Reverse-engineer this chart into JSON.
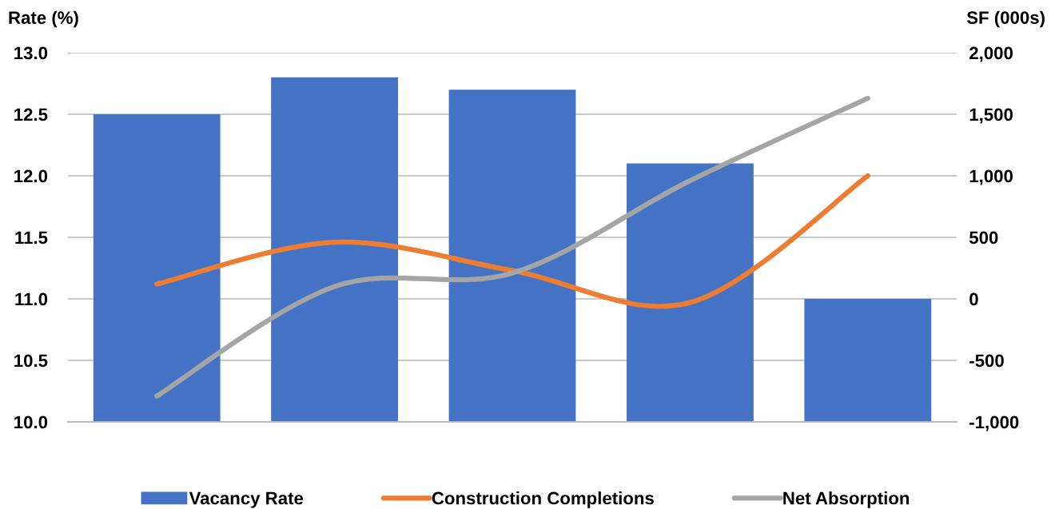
{
  "chart_data": {
    "type": "bar",
    "categories": [
      null,
      null,
      null,
      null,
      null
    ],
    "series": [
      {
        "name": "Vacancy Rate",
        "color": "#4472c4",
        "values": [
          12.5,
          12.8,
          12.7,
          12.1,
          11.0
        ]
      },
      {
        "name": "Construction Completions",
        "type": "line",
        "axis": "y2",
        "color": "#ed7d31",
        "values": [
          120,
          460,
          230,
          -30,
          1000
        ]
      },
      {
        "name": "Net Absorption",
        "type": "line",
        "axis": "y2",
        "color": "#a5a5a5",
        "values": [
          -790,
          100,
          210,
          960,
          1630
        ]
      }
    ],
    "ylabel": "Rate (%)",
    "y2label": "SF (000s)",
    "ylim": [
      10,
      13
    ],
    "yticks": [
      {
        "value": 10,
        "label": "10.0"
      },
      10.5,
      {
        "value": 11,
        "label": "11.0"
      },
      11.5,
      {
        "value": 12,
        "label": "12.0"
      },
      12.5,
      {
        "value": 13,
        "label": "13.0"
      }
    ],
    "y2lim": [
      -1000,
      2000
    ],
    "y2ticks": [
      {
        "value": -1000,
        "label": "-1,000"
      },
      -500,
      0,
      500,
      {
        "value": 1000,
        "label": "1,000"
      },
      {
        "value": 1500,
        "label": "1,500"
      },
      {
        "value": 2000,
        "label": "2,000"
      }
    ],
    "grid": "y",
    "legend": "bottom",
    "marker": "none",
    "line_style": "solid"
  }
}
